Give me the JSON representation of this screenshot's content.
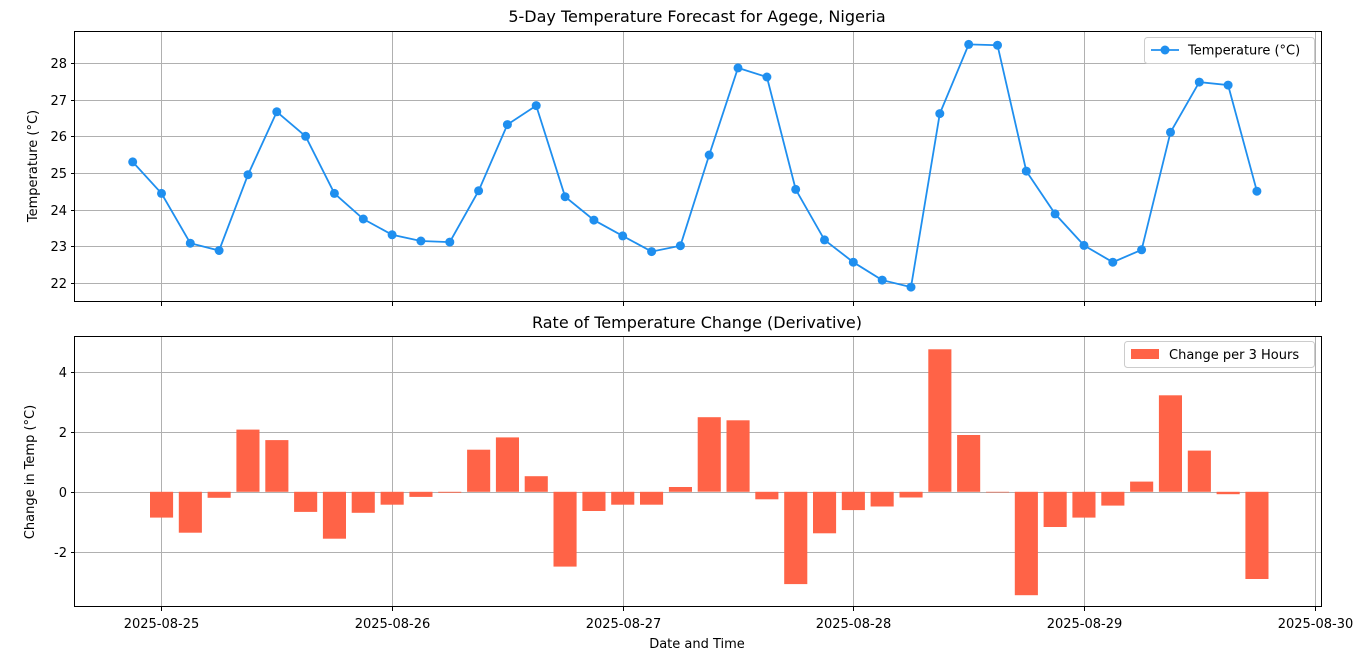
{
  "chart_data": [
    {
      "type": "line",
      "title": "5-Day Temperature Forecast for Agege, Nigeria",
      "xlabel": "",
      "ylabel": "Temperature (°C)",
      "ylim": [
        21.5,
        28.85
      ],
      "yticks": [
        22,
        23,
        24,
        25,
        26,
        27,
        28
      ],
      "grid": true,
      "legend_position": "top-right",
      "series": [
        {
          "name": "Temperature (°C)",
          "color": "#1f8fef",
          "x": [
            "2025-08-24 21:00",
            "2025-08-25 00:00",
            "2025-08-25 03:00",
            "2025-08-25 06:00",
            "2025-08-25 09:00",
            "2025-08-25 12:00",
            "2025-08-25 15:00",
            "2025-08-25 18:00",
            "2025-08-25 21:00",
            "2025-08-26 00:00",
            "2025-08-26 03:00",
            "2025-08-26 06:00",
            "2025-08-26 09:00",
            "2025-08-26 12:00",
            "2025-08-26 15:00",
            "2025-08-26 18:00",
            "2025-08-26 21:00",
            "2025-08-27 00:00",
            "2025-08-27 03:00",
            "2025-08-27 06:00",
            "2025-08-27 09:00",
            "2025-08-27 12:00",
            "2025-08-27 15:00",
            "2025-08-27 18:00",
            "2025-08-27 21:00",
            "2025-08-28 00:00",
            "2025-08-28 03:00",
            "2025-08-28 06:00",
            "2025-08-28 09:00",
            "2025-08-28 12:00",
            "2025-08-28 15:00",
            "2025-08-28 18:00",
            "2025-08-28 21:00",
            "2025-08-29 00:00",
            "2025-08-29 03:00",
            "2025-08-29 06:00",
            "2025-08-29 09:00",
            "2025-08-29 12:00",
            "2025-08-29 15:00",
            "2025-08-29 18:00"
          ],
          "values": [
            25.3,
            24.44,
            23.08,
            22.88,
            24.95,
            26.67,
            26.0,
            24.44,
            23.74,
            23.31,
            23.14,
            23.11,
            24.51,
            26.32,
            26.84,
            24.35,
            23.71,
            23.28,
            22.85,
            23.01,
            25.49,
            27.87,
            27.62,
            24.55,
            23.17,
            22.56,
            22.07,
            21.88,
            26.62,
            28.51,
            28.49,
            25.05,
            23.88,
            23.02,
            22.56,
            22.9,
            26.11,
            27.48,
            27.4,
            24.5
          ]
        }
      ]
    },
    {
      "type": "bar",
      "title": "Rate of Temperature Change (Derivative)",
      "xlabel": "Date and Time",
      "ylabel": "Change in Temp (°C)",
      "ylim": [
        -3.8,
        5.15
      ],
      "yticks": [
        -2,
        0,
        2,
        4
      ],
      "grid": true,
      "legend_position": "top-right",
      "series": [
        {
          "name": "Change per 3 Hours",
          "color": "#ff6347",
          "x": [
            "2025-08-25 00:00",
            "2025-08-25 03:00",
            "2025-08-25 06:00",
            "2025-08-25 09:00",
            "2025-08-25 12:00",
            "2025-08-25 15:00",
            "2025-08-25 18:00",
            "2025-08-25 21:00",
            "2025-08-26 00:00",
            "2025-08-26 03:00",
            "2025-08-26 06:00",
            "2025-08-26 09:00",
            "2025-08-26 12:00",
            "2025-08-26 15:00",
            "2025-08-26 18:00",
            "2025-08-26 21:00",
            "2025-08-27 00:00",
            "2025-08-27 03:00",
            "2025-08-27 06:00",
            "2025-08-27 09:00",
            "2025-08-27 12:00",
            "2025-08-27 15:00",
            "2025-08-27 18:00",
            "2025-08-27 21:00",
            "2025-08-28 00:00",
            "2025-08-28 03:00",
            "2025-08-28 06:00",
            "2025-08-28 09:00",
            "2025-08-28 12:00",
            "2025-08-28 15:00",
            "2025-08-28 18:00",
            "2025-08-28 21:00",
            "2025-08-29 00:00",
            "2025-08-29 03:00",
            "2025-08-29 06:00",
            "2025-08-29 09:00",
            "2025-08-29 12:00",
            "2025-08-29 15:00",
            "2025-08-29 18:00"
          ],
          "values": [
            -0.86,
            -1.36,
            -0.2,
            2.07,
            1.72,
            -0.67,
            -1.56,
            -0.7,
            -0.43,
            -0.17,
            -0.03,
            1.4,
            1.81,
            0.52,
            -2.49,
            -0.64,
            -0.43,
            -0.43,
            0.16,
            2.48,
            2.38,
            -0.25,
            -3.07,
            -1.38,
            -0.61,
            -0.49,
            -0.19,
            4.74,
            1.89,
            -0.02,
            -3.44,
            -1.17,
            -0.86,
            -0.46,
            0.34,
            3.21,
            1.37,
            -0.08,
            -2.9
          ]
        }
      ]
    }
  ],
  "x_axis": {
    "xlim": [
      "2025-08-24 15:00",
      "2025-08-30 00:40"
    ],
    "ticks": [
      "2025-08-25",
      "2025-08-26",
      "2025-08-27",
      "2025-08-28",
      "2025-08-29",
      "2025-08-30"
    ]
  }
}
